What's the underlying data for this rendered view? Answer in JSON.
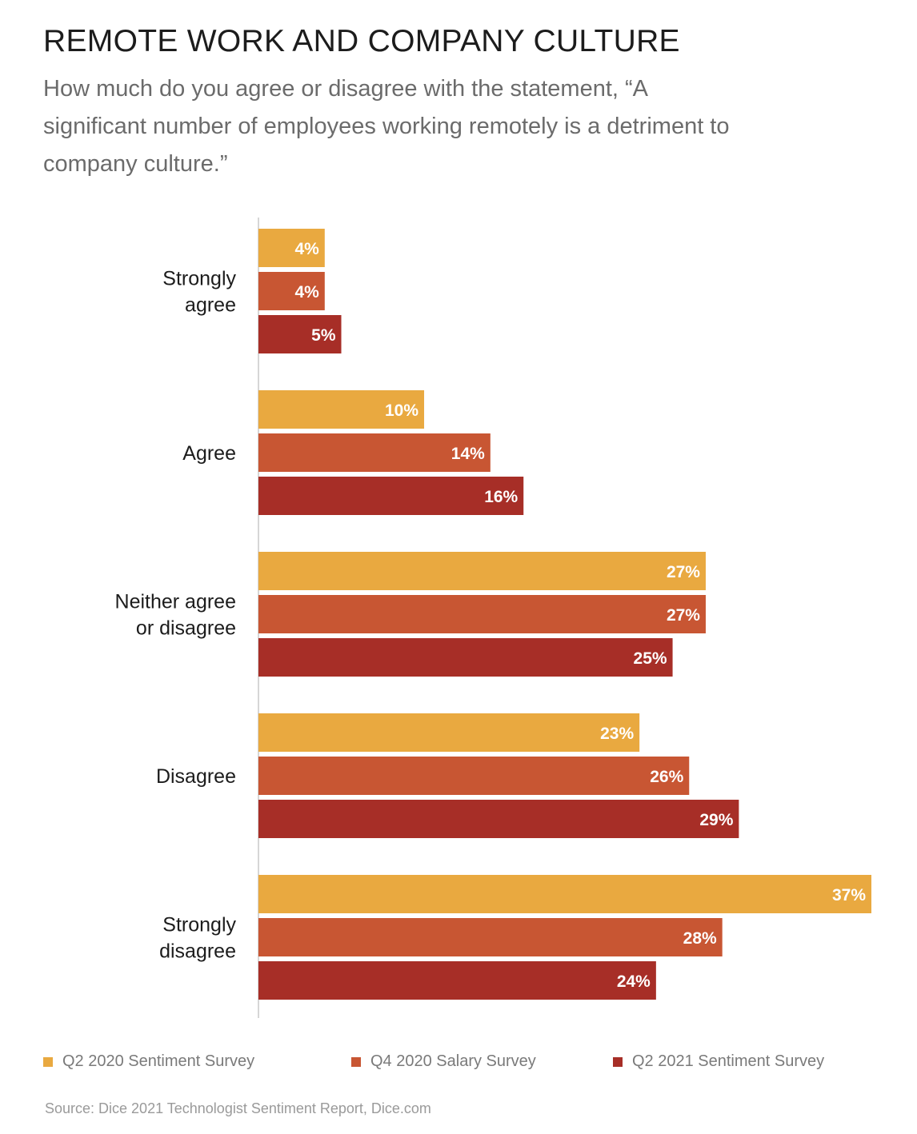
{
  "title": "REMOTE WORK AND COMPANY CULTURE",
  "subtitle": "How much do you agree or disagree with the statement, “A significant number of employees working remotely is a detriment to company culture.”",
  "source": "Source: Dice 2021 Technologist Sentiment Report, Dice.com",
  "chart_data": {
    "type": "bar",
    "orientation": "horizontal",
    "categories": [
      [
        "Strongly",
        "agree"
      ],
      [
        "Agree"
      ],
      [
        "Neither agree",
        "or disagree"
      ],
      [
        "Disagree"
      ],
      [
        "Strongly",
        "disagree"
      ]
    ],
    "series": [
      {
        "name": "Q2 2020 Sentiment Survey",
        "color": "#E9A940",
        "values": [
          4,
          10,
          27,
          23,
          37
        ]
      },
      {
        "name": "Q4 2020 Salary Survey",
        "color": "#C85633",
        "values": [
          4,
          14,
          27,
          26,
          28
        ]
      },
      {
        "name": "Q2 2021 Sentiment Survey",
        "color": "#A72E27",
        "values": [
          5,
          16,
          25,
          29,
          24
        ]
      }
    ],
    "value_suffix": "%",
    "xlim": [
      0,
      37
    ],
    "grid": false,
    "legend_position": "bottom"
  }
}
